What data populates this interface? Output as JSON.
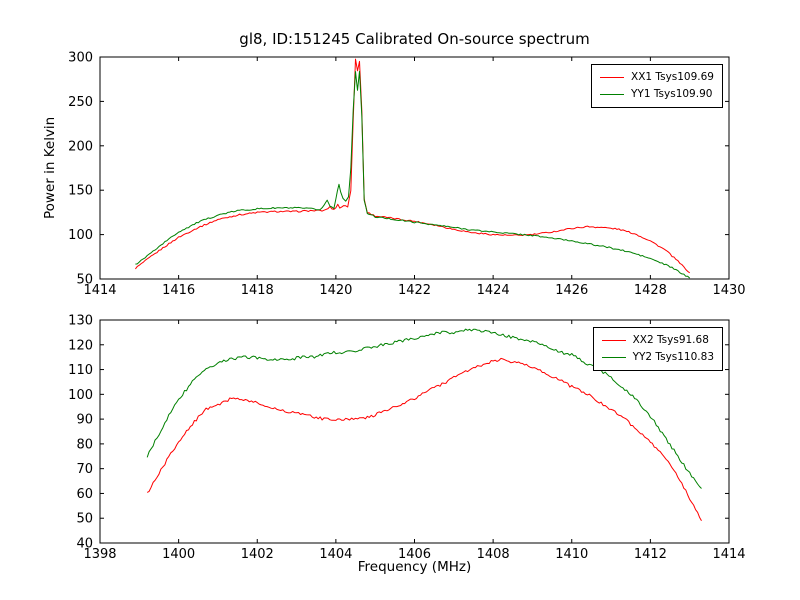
{
  "chart_data": [
    {
      "type": "line",
      "title": "gl8, ID:151245 Calibrated On-source spectrum",
      "xlabel": "",
      "ylabel": "Power in Kelvin",
      "xlim": [
        1414,
        1430
      ],
      "ylim": [
        50,
        300
      ],
      "xticks": [
        1414,
        1416,
        1418,
        1420,
        1422,
        1424,
        1426,
        1428,
        1430
      ],
      "yticks": [
        50,
        100,
        150,
        200,
        250,
        300
      ],
      "grid": false,
      "legend_position": "upper right",
      "noise": 0.8,
      "series": [
        {
          "name": "XX1 Tsys109.69",
          "color": "#ff0000",
          "x": [
            1414.9,
            1415.2,
            1415.6,
            1416.0,
            1416.5,
            1417.0,
            1417.5,
            1418.0,
            1418.5,
            1419.0,
            1419.4,
            1419.7,
            1419.85,
            1419.95,
            1420.05,
            1420.1,
            1420.2,
            1420.3,
            1420.38,
            1420.44,
            1420.5,
            1420.55,
            1420.6,
            1420.66,
            1420.72,
            1420.8,
            1421.0,
            1421.5,
            1422.0,
            1422.5,
            1423.0,
            1423.5,
            1424.0,
            1424.5,
            1425.0,
            1425.5,
            1426.0,
            1426.4,
            1426.8,
            1427.2,
            1427.6,
            1428.0,
            1428.4,
            1428.7,
            1429.0
          ],
          "y": [
            62,
            72,
            85,
            97,
            108,
            117,
            122,
            125,
            126,
            126,
            127,
            127,
            131,
            128,
            134,
            130,
            133,
            131,
            150,
            230,
            297,
            285,
            295,
            240,
            140,
            125,
            121,
            118,
            115,
            111,
            106,
            102,
            100,
            99,
            100,
            103,
            107,
            109,
            108,
            106,
            101,
            93,
            82,
            70,
            57
          ]
        },
        {
          "name": "YY1 Tsys109.90",
          "color": "#008000",
          "x": [
            1414.9,
            1415.2,
            1415.6,
            1416.0,
            1416.5,
            1417.0,
            1417.5,
            1418.0,
            1418.5,
            1419.0,
            1419.4,
            1419.6,
            1419.7,
            1419.78,
            1419.85,
            1419.95,
            1420.0,
            1420.08,
            1420.12,
            1420.18,
            1420.25,
            1420.32,
            1420.38,
            1420.44,
            1420.5,
            1420.55,
            1420.6,
            1420.66,
            1420.72,
            1420.8,
            1421.0,
            1421.5,
            1422.0,
            1422.5,
            1423.0,
            1423.5,
            1424.0,
            1424.5,
            1425.0,
            1425.5,
            1426.0,
            1426.5,
            1427.0,
            1427.5,
            1428.0,
            1428.5,
            1429.0
          ],
          "y": [
            66,
            76,
            90,
            103,
            114,
            122,
            127,
            129,
            130,
            130,
            129,
            128,
            133,
            139,
            132,
            130,
            141,
            157,
            149,
            140,
            138,
            143,
            175,
            240,
            284,
            262,
            283,
            235,
            138,
            124,
            120,
            117,
            114,
            111,
            108,
            105,
            103,
            101,
            99,
            96,
            93,
            89,
            85,
            80,
            73,
            64,
            51
          ]
        }
      ]
    },
    {
      "type": "line",
      "title": "",
      "xlabel": "Frequency (MHz)",
      "ylabel": "",
      "xlim": [
        1398,
        1414
      ],
      "ylim": [
        40,
        130
      ],
      "xticks": [
        1398,
        1400,
        1402,
        1404,
        1406,
        1408,
        1410,
        1412,
        1414
      ],
      "yticks": [
        40,
        50,
        60,
        70,
        80,
        90,
        100,
        110,
        120,
        130
      ],
      "grid": false,
      "legend_position": "upper right",
      "noise": 0.6,
      "series": [
        {
          "name": "XX2 Tsys91.68",
          "color": "#ff0000",
          "x": [
            1399.2,
            1399.5,
            1399.8,
            1400.1,
            1400.4,
            1400.7,
            1401.0,
            1401.3,
            1401.6,
            1401.9,
            1402.2,
            1402.5,
            1402.8,
            1403.1,
            1403.4,
            1403.7,
            1404.0,
            1404.3,
            1404.6,
            1404.9,
            1405.2,
            1405.5,
            1405.8,
            1406.1,
            1406.4,
            1406.7,
            1407.0,
            1407.3,
            1407.6,
            1407.9,
            1408.2,
            1408.5,
            1408.8,
            1409.1,
            1409.4,
            1409.7,
            1410.0,
            1410.3,
            1410.6,
            1410.9,
            1411.2,
            1411.5,
            1411.8,
            1412.1,
            1412.4,
            1412.7,
            1413.0,
            1413.3
          ],
          "y": [
            60,
            68,
            76,
            83,
            89,
            94,
            96,
            98,
            98,
            97,
            95,
            94,
            93,
            92,
            91,
            90,
            90,
            90,
            90,
            91,
            93,
            95,
            97,
            99,
            102,
            104,
            107,
            109,
            111,
            113,
            114,
            113,
            112,
            110,
            108,
            106,
            103,
            101,
            98,
            95,
            92,
            88,
            84,
            79,
            74,
            67,
            58,
            49
          ]
        },
        {
          "name": "YY2 Tsys110.83",
          "color": "#008000",
          "x": [
            1399.2,
            1399.5,
            1399.8,
            1400.1,
            1400.4,
            1400.7,
            1401.0,
            1401.3,
            1401.6,
            1401.9,
            1402.2,
            1402.5,
            1402.8,
            1403.1,
            1403.4,
            1403.7,
            1404.0,
            1404.3,
            1404.6,
            1404.9,
            1405.2,
            1405.5,
            1405.8,
            1406.1,
            1406.4,
            1406.7,
            1407.0,
            1407.3,
            1407.6,
            1407.9,
            1408.2,
            1408.5,
            1408.8,
            1409.1,
            1409.4,
            1409.7,
            1410.0,
            1410.3,
            1410.6,
            1410.9,
            1411.2,
            1411.5,
            1411.8,
            1412.1,
            1412.4,
            1412.7,
            1413.0,
            1413.3
          ],
          "y": [
            75,
            84,
            93,
            100,
            106,
            110,
            113,
            114,
            115,
            115,
            114,
            114,
            114,
            115,
            115,
            116,
            117,
            117,
            118,
            119,
            120,
            121,
            122,
            123,
            124,
            125,
            125,
            126,
            126,
            125,
            124,
            123,
            122,
            121,
            119,
            117,
            116,
            113,
            111,
            108,
            104,
            100,
            95,
            89,
            82,
            75,
            68,
            62
          ]
        }
      ]
    }
  ]
}
